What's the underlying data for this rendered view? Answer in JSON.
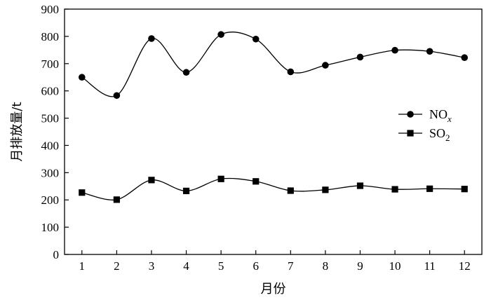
{
  "chart_data": {
    "type": "line",
    "title": "",
    "xlabel": "月份",
    "ylabel": "月排放量/t",
    "xlim": [
      0.5,
      12.5
    ],
    "ylim": [
      0,
      900
    ],
    "x": [
      1,
      2,
      3,
      4,
      5,
      6,
      7,
      8,
      9,
      10,
      11,
      12
    ],
    "x_ticks": [
      "1",
      "2",
      "3",
      "4",
      "5",
      "6",
      "7",
      "8",
      "9",
      "10",
      "11",
      "12"
    ],
    "y_ticks": [
      "0",
      "100",
      "200",
      "300",
      "400",
      "500",
      "600",
      "700",
      "800",
      "900"
    ],
    "legend_position": "right",
    "grid": false,
    "series": [
      {
        "name": "NO",
        "name_sub": "x",
        "marker": "circle",
        "color": "#000000",
        "values": [
          650,
          583,
          792,
          668,
          807,
          790,
          670,
          694,
          724,
          749,
          745,
          722
        ]
      },
      {
        "name": "SO",
        "name_sub": "2",
        "marker": "square",
        "color": "#000000",
        "values": [
          227,
          201,
          273,
          233,
          277,
          268,
          234,
          237,
          252,
          239,
          241,
          240
        ]
      }
    ]
  }
}
